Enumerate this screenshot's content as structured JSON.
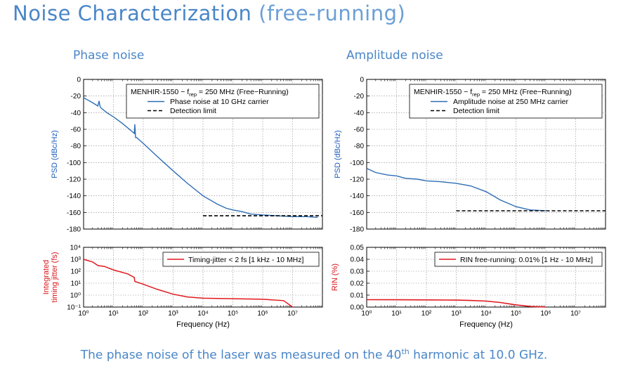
{
  "page": {
    "title": "Noise Characterization",
    "title_suffix": "(free-running)",
    "caption_before": "The phase noise of the laser was measured on the 40",
    "caption_sup": "th",
    "caption_after": " harmonic at 10.0 GHz."
  },
  "sections": {
    "phase": "Phase noise",
    "amplitude": "Amplitude noise"
  },
  "colors": {
    "blue": "#2e6db4",
    "red": "#e0191e",
    "title_blue": "#4a86c8",
    "axis_blue": "#1f5fbf",
    "axis_red": "#d9141a"
  },
  "chart_data": [
    {
      "id": "phase-psd",
      "type": "line",
      "x_scale": "log",
      "xlim": [
        1,
        100000000
      ],
      "ylim": [
        -180,
        0
      ],
      "yticks": [
        0,
        -20,
        -40,
        -60,
        -80,
        -100,
        -120,
        -140,
        -160,
        -180
      ],
      "ylabel": "PSD (dBc/Hz)",
      "xlabel": "",
      "legend_title": "MENHIR-1550 − f",
      "legend_title_sub": "rep",
      "legend_title_after": " = 250 MHz (Free−Running)",
      "legend_placement": "top-right",
      "grid": true,
      "series": [
        {
          "name": "Phase noise at 10 GHz carrier",
          "style": "solid",
          "color": "#2e6db4",
          "x": [
            1,
            2,
            3,
            3.3,
            3.6,
            4,
            6,
            10,
            20,
            40,
            50,
            52,
            55,
            60,
            100,
            300,
            1000,
            3000,
            10000,
            30000,
            60000,
            100000,
            200000,
            400000,
            1000000,
            3000000,
            10000000,
            30000000,
            70000000
          ],
          "y": [
            -22,
            -28,
            -32,
            -26,
            -33,
            -35,
            -40,
            -45,
            -53,
            -62,
            -65,
            -54,
            -70,
            -70,
            -77,
            -93,
            -110,
            -125,
            -140,
            -150,
            -155,
            -157,
            -159,
            -162,
            -163,
            -164,
            -165,
            -165,
            -166
          ]
        },
        {
          "name": "Detection limit",
          "style": "dashed",
          "color": "#000000",
          "x": [
            10000,
            100000000
          ],
          "y": [
            -164,
            -164
          ]
        }
      ]
    },
    {
      "id": "phase-jitter",
      "type": "line",
      "x_scale": "log",
      "y_scale": "log",
      "xlim": [
        1,
        100000000
      ],
      "ylim": [
        0.1,
        10000
      ],
      "yticks": [
        "10⁴",
        "10³",
        "10²",
        "10¹",
        "10⁰",
        "10⁻¹"
      ],
      "xticks": [
        "10⁰",
        "10¹",
        "10²",
        "10³",
        "10⁴",
        "10⁵",
        "10⁶",
        "10⁷"
      ],
      "ylabel": "Integrated timing jitter (fs)",
      "ylabel_line1": "Integrated",
      "ylabel_line2": "timing jitter (fs)",
      "xlabel": "Frequency (Hz)",
      "legend_placement": "top-right",
      "grid": true,
      "series": [
        {
          "name": "Timing-jitter < 2 fs [1 kHz - 10 MHz]",
          "color": "#e0191e",
          "x": [
            1,
            2,
            3,
            5,
            10,
            30,
            50,
            52,
            100,
            300,
            1000,
            3000,
            10000,
            100000,
            1000000,
            5000000,
            10000000
          ],
          "y": [
            1000,
            600,
            300,
            250,
            130,
            60,
            30,
            14,
            8,
            3,
            1.2,
            0.7,
            0.55,
            0.5,
            0.45,
            0.35,
            0.1
          ]
        }
      ]
    },
    {
      "id": "amp-psd",
      "type": "line",
      "x_scale": "log",
      "xlim": [
        1,
        100000000
      ],
      "ylim": [
        -180,
        0
      ],
      "yticks": [
        0,
        -20,
        -40,
        -60,
        -80,
        -100,
        -120,
        -140,
        -160,
        -180
      ],
      "ylabel": "PSD (dBc/Hz)",
      "xlabel": "",
      "legend_title": "MENHIR-1550 − f",
      "legend_title_sub": "rep",
      "legend_title_after": " = 250 MHz (Free−Running)",
      "legend_placement": "top-right",
      "grid": true,
      "series": [
        {
          "name": "Amplitude noise at 250 MHz carrier",
          "style": "solid",
          "color": "#2e6db4",
          "x": [
            1,
            2,
            5,
            10,
            20,
            50,
            100,
            300,
            1000,
            3000,
            10000,
            30000,
            100000,
            300000,
            1000000
          ],
          "y": [
            -107,
            -112,
            -115,
            -116,
            -119,
            -120,
            -122,
            -123,
            -125,
            -128,
            -135,
            -145,
            -153,
            -157,
            -158
          ]
        },
        {
          "name": "Detection limit",
          "style": "dashed",
          "color": "#000000",
          "x": [
            1000,
            100000000
          ],
          "y": [
            -158,
            -158
          ]
        }
      ]
    },
    {
      "id": "amp-rin",
      "type": "line",
      "x_scale": "log",
      "xlim": [
        1,
        100000000
      ],
      "ylim": [
        0,
        0.05
      ],
      "yticks": [
        "0.05",
        "0.04",
        "0.03",
        "0.02",
        "0.01",
        "0.00"
      ],
      "xticks": [
        "10⁰",
        "10¹",
        "10²",
        "10³",
        "10⁴",
        "10⁵",
        "10⁶",
        "10⁷"
      ],
      "ylabel": "RIN (%)",
      "xlabel": "Frequency (Hz)",
      "legend_placement": "top-right",
      "grid": true,
      "series": [
        {
          "name": "RIN free-running: 0.01% [1 Hz - 10 MHz]",
          "color": "#e0191e",
          "x": [
            1,
            10,
            100,
            1000,
            3000,
            10000,
            30000,
            100000,
            300000,
            1000000
          ],
          "y": [
            0.0062,
            0.0061,
            0.006,
            0.0058,
            0.0055,
            0.005,
            0.0038,
            0.0018,
            0.0005,
            0.0
          ]
        }
      ]
    }
  ]
}
